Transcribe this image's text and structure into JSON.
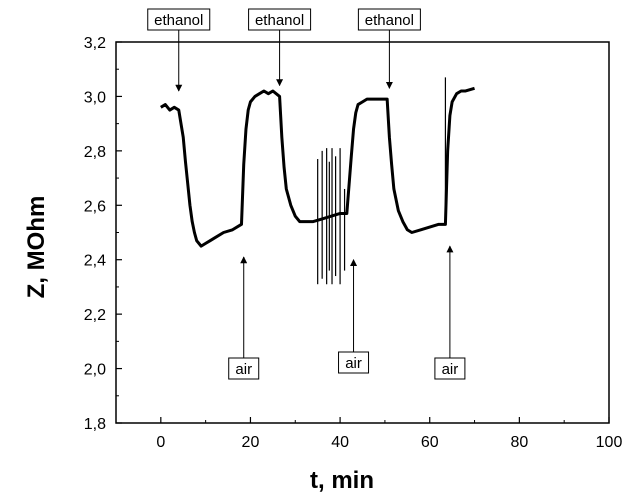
{
  "chart_data": {
    "type": "line",
    "title": "",
    "xlabel": "t, min",
    "ylabel": "Z, MOhm",
    "xlim": [
      -10,
      100
    ],
    "ylim": [
      1.8,
      3.2
    ],
    "x_ticks": [
      0,
      20,
      40,
      60,
      80,
      100
    ],
    "y_ticks": [
      1.8,
      2.0,
      2.2,
      2.4,
      2.6,
      2.8,
      3.0,
      3.2
    ],
    "x_tick_labels": [
      "0",
      "20",
      "40",
      "60",
      "80",
      "100"
    ],
    "y_tick_labels": [
      "1,8",
      "2,0",
      "2,2",
      "2,4",
      "2,6",
      "2,8",
      "3,0",
      "3,2"
    ],
    "grid": false,
    "line_color": "#000000",
    "series": [
      {
        "x": [
          0,
          1,
          2,
          3,
          4,
          5,
          5.5,
          6,
          6.5,
          7,
          7.5,
          8,
          9,
          10,
          11,
          12,
          14,
          16,
          18,
          18.5,
          19,
          19.5,
          20,
          21,
          22,
          23,
          24,
          25,
          26.5,
          27,
          27.5,
          28,
          29,
          30,
          31,
          32,
          34,
          36,
          38,
          40,
          41.5,
          42.5,
          43,
          43.5,
          44,
          45,
          46,
          47,
          48,
          49,
          50.5,
          51,
          51.5,
          52,
          53,
          54,
          55,
          56,
          58,
          60,
          62,
          63.5,
          64,
          64.5,
          65,
          66,
          67,
          68,
          70
        ],
        "y": [
          2.96,
          2.97,
          2.95,
          2.96,
          2.95,
          2.85,
          2.76,
          2.68,
          2.6,
          2.54,
          2.5,
          2.47,
          2.45,
          2.46,
          2.47,
          2.48,
          2.5,
          2.51,
          2.53,
          2.75,
          2.88,
          2.95,
          2.98,
          3.0,
          3.01,
          3.02,
          3.01,
          3.02,
          3.0,
          2.85,
          2.74,
          2.66,
          2.6,
          2.56,
          2.54,
          2.54,
          2.54,
          2.55,
          2.56,
          2.57,
          2.57,
          2.78,
          2.88,
          2.94,
          2.97,
          2.98,
          2.99,
          2.99,
          2.99,
          2.99,
          2.99,
          2.85,
          2.75,
          2.66,
          2.58,
          2.54,
          2.51,
          2.5,
          2.51,
          2.52,
          2.53,
          2.53,
          2.8,
          2.93,
          2.98,
          3.01,
          3.02,
          3.02,
          3.03
        ]
      }
    ],
    "spikes": [
      {
        "x": 35.0,
        "y_low": 2.31,
        "y_high": 2.77
      },
      {
        "x": 36.0,
        "y_low": 2.33,
        "y_high": 2.8
      },
      {
        "x": 37.0,
        "y_low": 2.31,
        "y_high": 2.81
      },
      {
        "x": 37.6,
        "y_low": 2.36,
        "y_high": 2.76
      },
      {
        "x": 38.2,
        "y_low": 2.31,
        "y_high": 2.81
      },
      {
        "x": 39.0,
        "y_low": 2.34,
        "y_high": 2.78
      },
      {
        "x": 40.0,
        "y_low": 2.31,
        "y_high": 2.81
      },
      {
        "x": 41.0,
        "y_low": 2.36,
        "y_high": 2.66
      },
      {
        "x": 63.5,
        "y_low": 2.53,
        "y_high": 3.07
      }
    ],
    "annotations": [
      {
        "text": "ethanol",
        "x": 4,
        "y": 3.02,
        "direction": "down"
      },
      {
        "text": "ethanol",
        "x": 26.5,
        "y": 3.04,
        "direction": "down"
      },
      {
        "text": "ethanol",
        "x": 51,
        "y": 3.03,
        "direction": "down"
      },
      {
        "text": "air",
        "x": 18.5,
        "y": 2.41,
        "direction": "up"
      },
      {
        "text": "air",
        "x": 43,
        "y": 2.4,
        "direction": "up"
      },
      {
        "text": "air",
        "x": 64.5,
        "y": 2.45,
        "direction": "up"
      }
    ]
  }
}
